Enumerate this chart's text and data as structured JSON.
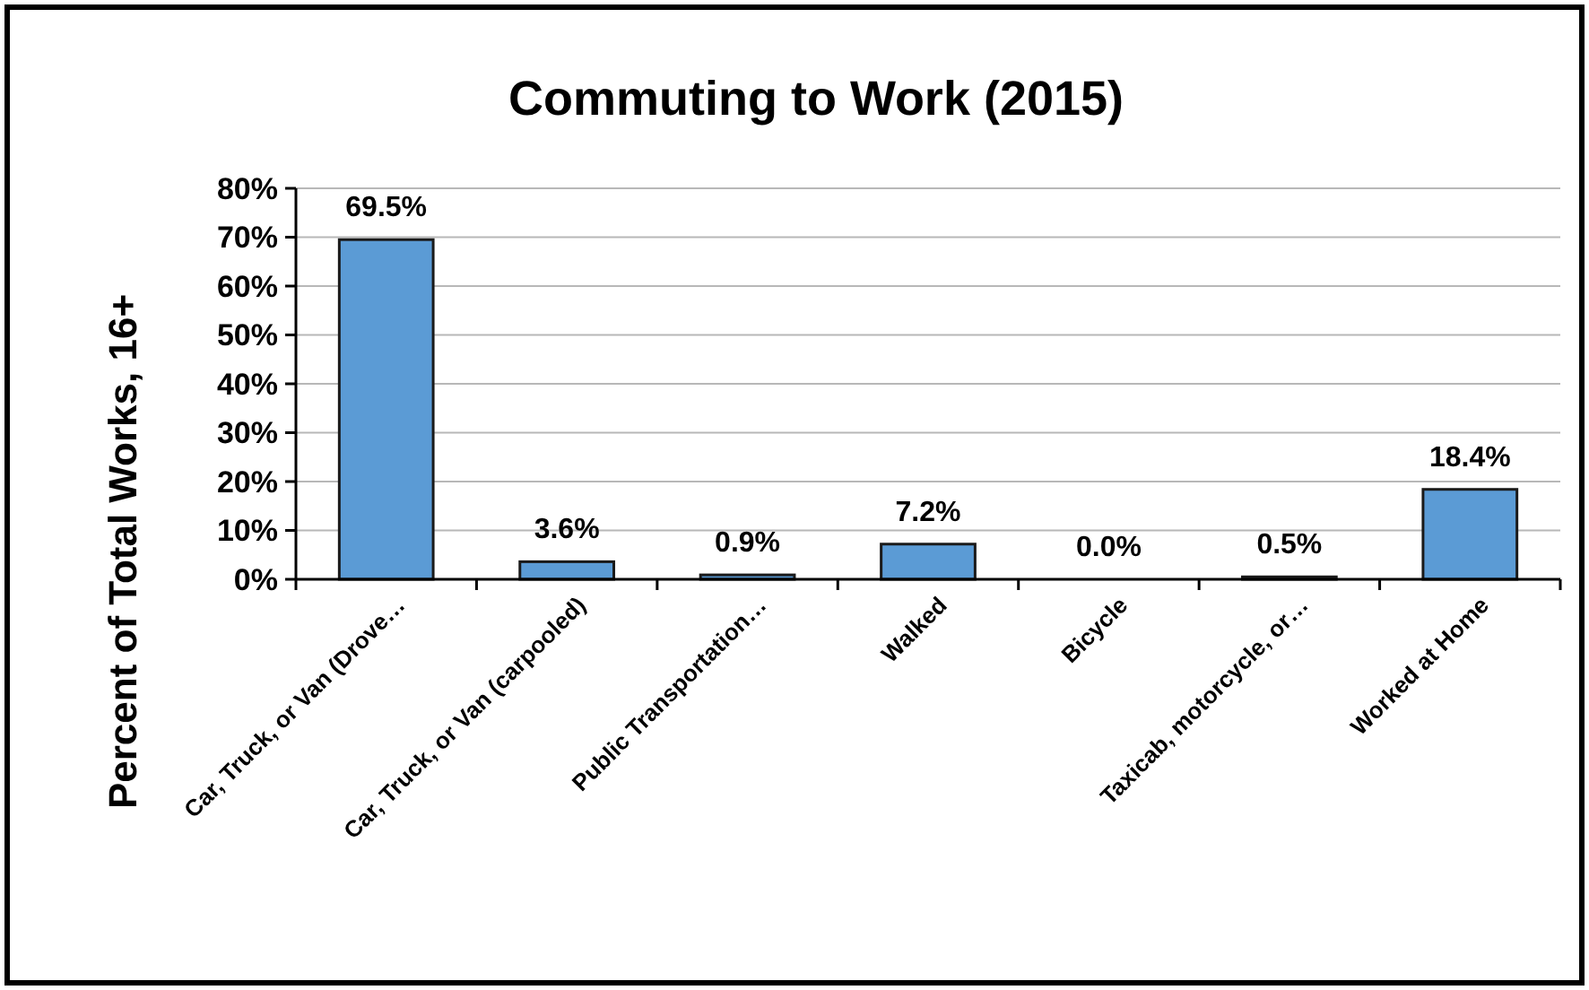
{
  "chart_data": {
    "type": "bar",
    "title": "Commuting to Work (2015)",
    "ylabel": "Percent of Total Works, 16+",
    "categories": [
      "Car, Truck, or Van (Drove…",
      "Car, Truck, or Van (carpooled)",
      "Public Transportation…",
      "Walked",
      "Bicycle",
      "Taxicab, motorcycle, or…",
      "Worked at Home"
    ],
    "values": [
      69.5,
      3.6,
      0.9,
      7.2,
      0.0,
      0.5,
      18.4
    ],
    "value_labels": [
      "69.5%",
      "3.6%",
      "0.9%",
      "7.2%",
      "0.0%",
      "0.5%",
      "18.4%"
    ],
    "color": "#5b9bd5",
    "ylim": [
      0,
      80
    ],
    "yticks": [
      {
        "value": 0,
        "label": "0%"
      },
      {
        "value": 10,
        "label": "10%"
      },
      {
        "value": 20,
        "label": "20%"
      },
      {
        "value": 30,
        "label": "30%"
      },
      {
        "value": 40,
        "label": "40%"
      },
      {
        "value": 50,
        "label": "50%"
      },
      {
        "value": 60,
        "label": "60%"
      },
      {
        "value": 70,
        "label": "70%"
      },
      {
        "value": 80,
        "label": "80%"
      }
    ],
    "grid": "y"
  }
}
